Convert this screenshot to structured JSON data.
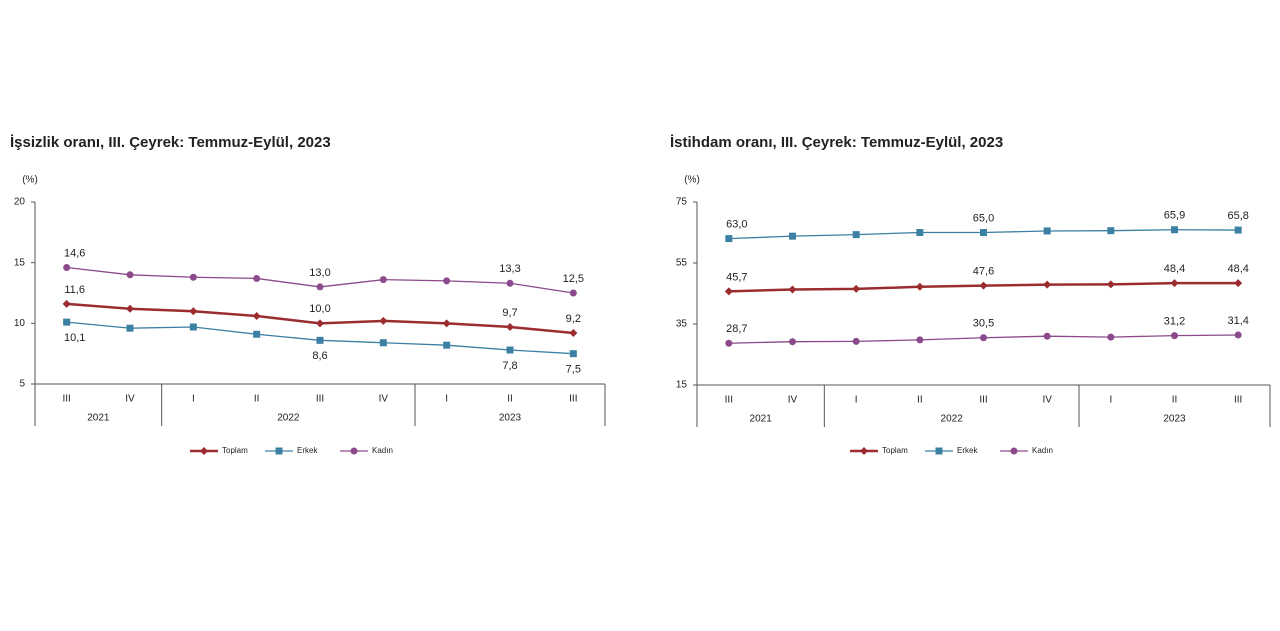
{
  "chart_data": [
    {
      "type": "line",
      "title": "İşsizlik oranı, III. Çeyrek: Temmuz-Eylül, 2023",
      "y_label": "(%)",
      "categories": [
        "III",
        "IV",
        "I",
        "II",
        "III",
        "IV",
        "I",
        "II",
        "III"
      ],
      "year_groups": [
        "2021",
        "2022",
        "2023"
      ],
      "ylim": [
        5,
        20
      ],
      "yticks": [
        5,
        10,
        15,
        20
      ],
      "series": [
        {
          "name": "Toplam",
          "color": "#9b2c2f",
          "values": [
            11.6,
            11.2,
            11.0,
            10.6,
            10.0,
            10.2,
            10.0,
            9.7,
            9.2
          ],
          "value_labels": [
            "11,6",
            null,
            null,
            null,
            "10,0",
            null,
            null,
            "9,7",
            "9,2"
          ]
        },
        {
          "name": "Erkek",
          "color": "#3c80a3",
          "values": [
            10.1,
            9.6,
            9.7,
            9.1,
            8.6,
            8.4,
            8.2,
            7.8,
            7.5
          ],
          "value_labels": [
            "10,1",
            null,
            null,
            null,
            "8,6",
            null,
            null,
            "7,8",
            "7,5"
          ]
        },
        {
          "name": "Kadın",
          "color": "#8b4a8b",
          "values": [
            14.6,
            14.0,
            13.8,
            13.7,
            13.0,
            13.6,
            13.5,
            13.3,
            12.5
          ],
          "value_labels": [
            "14,6",
            null,
            null,
            null,
            "13,0",
            null,
            null,
            "13,3",
            "12,5"
          ]
        }
      ]
    },
    {
      "type": "line",
      "title": "İstihdam oranı, III. Çeyrek: Temmuz-Eylül, 2023",
      "y_label": "(%)",
      "categories": [
        "III",
        "IV",
        "I",
        "II",
        "III",
        "IV",
        "I",
        "II",
        "III"
      ],
      "year_groups": [
        "2021",
        "2022",
        "2023"
      ],
      "ylim": [
        15,
        75
      ],
      "yticks": [
        15,
        35,
        55,
        75
      ],
      "series": [
        {
          "name": "Toplam",
          "color": "#9b2c2f",
          "values": [
            45.7,
            46.3,
            46.5,
            47.2,
            47.6,
            47.9,
            48.0,
            48.4,
            48.4
          ],
          "value_labels": [
            "45,7",
            null,
            null,
            null,
            "47,6",
            null,
            null,
            "48,4",
            "48,4"
          ]
        },
        {
          "name": "Erkek",
          "color": "#3c80a3",
          "values": [
            63.0,
            63.8,
            64.3,
            65.0,
            65.0,
            65.5,
            65.6,
            65.9,
            65.8
          ],
          "value_labels": [
            "63,0",
            null,
            null,
            null,
            "65,0",
            null,
            null,
            "65,9",
            "65,8"
          ]
        },
        {
          "name": "Kadın",
          "color": "#8b4a8b",
          "values": [
            28.7,
            29.2,
            29.3,
            29.8,
            30.5,
            31.0,
            30.7,
            31.2,
            31.4
          ],
          "value_labels": [
            "28,7",
            null,
            null,
            null,
            "30,5",
            null,
            null,
            "31,2",
            "31,4"
          ]
        }
      ]
    }
  ]
}
